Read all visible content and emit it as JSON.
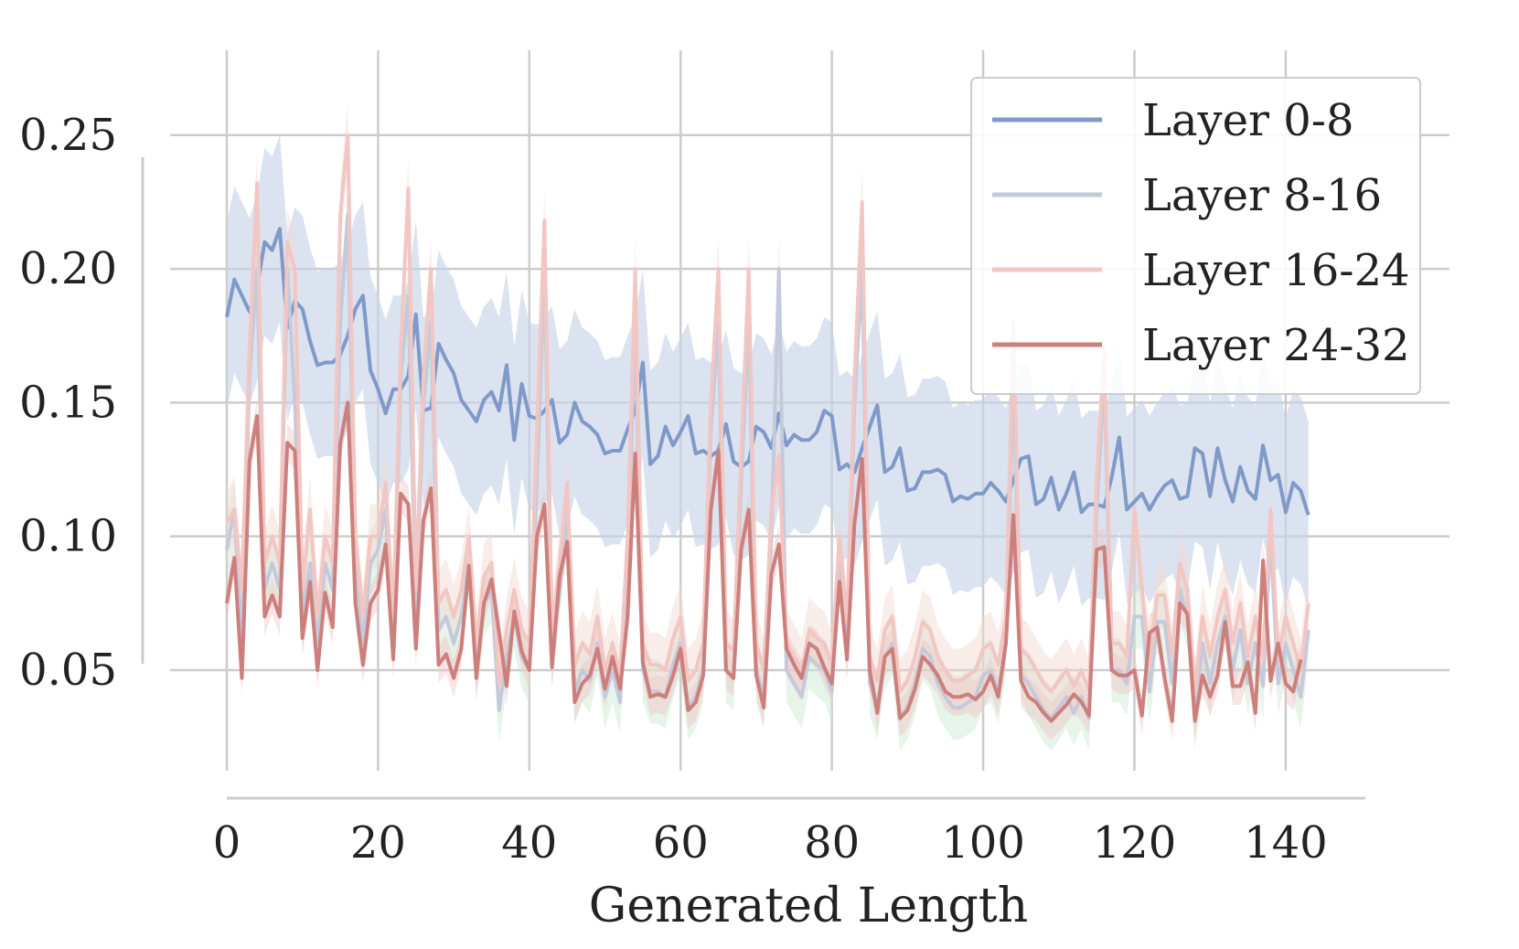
{
  "chart_data": {
    "type": "line",
    "title": "",
    "xlabel": "Generated Length",
    "ylabel": "",
    "xlim": [
      0,
      143
    ],
    "ylim": [
      0.01,
      0.28
    ],
    "xticks": [
      0,
      20,
      40,
      60,
      80,
      100,
      120,
      140
    ],
    "yticks": [
      0.05,
      0.1,
      0.15,
      0.2,
      0.25
    ],
    "xtick_labels": [
      "0",
      "20",
      "40",
      "60",
      "80",
      "100",
      "120",
      "140"
    ],
    "ytick_labels": [
      "0.05",
      "0.10",
      "0.15",
      "0.20",
      "0.25"
    ],
    "grid": true,
    "legend_position": "top-right",
    "series": [
      {
        "name": "Layer 0-8",
        "color": "#7f9ac8",
        "band_color": "#c8d4e8",
        "band_halfwidth": 0.035,
        "values": [
          0.182,
          0.196,
          0.19,
          0.184,
          0.193,
          0.21,
          0.207,
          0.215,
          0.178,
          0.188,
          0.185,
          0.173,
          0.164,
          0.165,
          0.165,
          0.168,
          0.175,
          0.185,
          0.19,
          0.162,
          0.155,
          0.146,
          0.155,
          0.155,
          0.16,
          0.183,
          0.147,
          0.148,
          0.172,
          0.166,
          0.161,
          0.151,
          0.147,
          0.143,
          0.151,
          0.154,
          0.147,
          0.164,
          0.136,
          0.157,
          0.145,
          0.144,
          0.147,
          0.151,
          0.135,
          0.138,
          0.15,
          0.143,
          0.141,
          0.138,
          0.131,
          0.132,
          0.132,
          0.14,
          0.147,
          0.165,
          0.127,
          0.13,
          0.141,
          0.134,
          0.139,
          0.145,
          0.131,
          0.132,
          0.13,
          0.132,
          0.142,
          0.128,
          0.126,
          0.128,
          0.141,
          0.139,
          0.133,
          0.146,
          0.134,
          0.138,
          0.136,
          0.136,
          0.139,
          0.147,
          0.145,
          0.125,
          0.127,
          0.124,
          0.133,
          0.141,
          0.149,
          0.124,
          0.126,
          0.133,
          0.117,
          0.118,
          0.124,
          0.124,
          0.125,
          0.123,
          0.113,
          0.115,
          0.114,
          0.116,
          0.116,
          0.12,
          0.117,
          0.113,
          0.121,
          0.129,
          0.13,
          0.112,
          0.114,
          0.122,
          0.11,
          0.116,
          0.124,
          0.109,
          0.112,
          0.112,
          0.111,
          0.122,
          0.137,
          0.11,
          0.113,
          0.116,
          0.11,
          0.115,
          0.119,
          0.121,
          0.114,
          0.115,
          0.133,
          0.131,
          0.115,
          0.133,
          0.121,
          0.113,
          0.126,
          0.117,
          0.114,
          0.134,
          0.121,
          0.123,
          0.109,
          0.12,
          0.117,
          0.108
        ]
      },
      {
        "name": "Layer 8-16",
        "color": "#c4cadb",
        "band_color": "#c8e6d0",
        "band_halfwidth": 0.012,
        "values": [
          0.095,
          0.11,
          0.06,
          0.16,
          0.2,
          0.08,
          0.09,
          0.08,
          0.2,
          0.15,
          0.07,
          0.09,
          0.06,
          0.09,
          0.08,
          0.18,
          0.22,
          0.09,
          0.06,
          0.09,
          0.095,
          0.11,
          0.06,
          0.16,
          0.19,
          0.07,
          0.15,
          0.18,
          0.065,
          0.07,
          0.06,
          0.07,
          0.09,
          0.05,
          0.075,
          0.08,
          0.035,
          0.055,
          0.07,
          0.055,
          0.05,
          0.12,
          0.2,
          0.055,
          0.08,
          0.11,
          0.042,
          0.05,
          0.046,
          0.06,
          0.04,
          0.05,
          0.038,
          0.09,
          0.18,
          0.05,
          0.042,
          0.042,
          0.04,
          0.052,
          0.06,
          0.036,
          0.04,
          0.05,
          0.14,
          0.18,
          0.05,
          0.047,
          0.12,
          0.18,
          0.05,
          0.04,
          0.1,
          0.2,
          0.05,
          0.045,
          0.04,
          0.055,
          0.052,
          0.05,
          0.042,
          0.09,
          0.058,
          0.15,
          0.2,
          0.045,
          0.036,
          0.055,
          0.06,
          0.032,
          0.036,
          0.045,
          0.058,
          0.055,
          0.045,
          0.04,
          0.036,
          0.036,
          0.038,
          0.04,
          0.048,
          0.05,
          0.042,
          0.06,
          0.16,
          0.048,
          0.045,
          0.04,
          0.035,
          0.032,
          0.036,
          0.04,
          0.034,
          0.04,
          0.032,
          0.11,
          0.16,
          0.05,
          0.05,
          0.045,
          0.07,
          0.07,
          0.042,
          0.068,
          0.068,
          0.045,
          0.08,
          0.07,
          0.032,
          0.06,
          0.045,
          0.06,
          0.07,
          0.05,
          0.065,
          0.045,
          0.06,
          0.044,
          0.1,
          0.045,
          0.06,
          0.05,
          0.04,
          0.065
        ]
      },
      {
        "name": "Layer 16-24",
        "color": "#f2c6c2",
        "band_color": "#f2d8d0",
        "band_halfwidth": 0.012,
        "values": [
          0.105,
          0.11,
          0.08,
          0.17,
          0.232,
          0.09,
          0.1,
          0.09,
          0.21,
          0.2,
          0.08,
          0.11,
          0.07,
          0.1,
          0.09,
          0.22,
          0.25,
          0.1,
          0.07,
          0.1,
          0.1,
          0.12,
          0.07,
          0.17,
          0.23,
          0.08,
          0.16,
          0.2,
          0.075,
          0.08,
          0.07,
          0.08,
          0.1,
          0.06,
          0.085,
          0.09,
          0.045,
          0.065,
          0.08,
          0.065,
          0.06,
          0.14,
          0.218,
          0.065,
          0.09,
          0.12,
          0.052,
          0.06,
          0.056,
          0.07,
          0.05,
          0.06,
          0.048,
          0.1,
          0.2,
          0.06,
          0.052,
          0.052,
          0.05,
          0.062,
          0.07,
          0.046,
          0.05,
          0.06,
          0.15,
          0.2,
          0.06,
          0.057,
          0.13,
          0.2,
          0.06,
          0.05,
          0.11,
          0.13,
          0.06,
          0.055,
          0.05,
          0.065,
          0.062,
          0.06,
          0.052,
          0.1,
          0.068,
          0.16,
          0.225,
          0.055,
          0.046,
          0.065,
          0.07,
          0.042,
          0.046,
          0.055,
          0.068,
          0.065,
          0.055,
          0.05,
          0.046,
          0.046,
          0.048,
          0.05,
          0.058,
          0.06,
          0.052,
          0.07,
          0.18,
          0.058,
          0.055,
          0.05,
          0.045,
          0.042,
          0.046,
          0.05,
          0.044,
          0.05,
          0.042,
          0.12,
          0.17,
          0.06,
          0.06,
          0.055,
          0.11,
          0.08,
          0.052,
          0.078,
          0.078,
          0.055,
          0.09,
          0.08,
          0.042,
          0.07,
          0.055,
          0.07,
          0.08,
          0.06,
          0.075,
          0.055,
          0.07,
          0.054,
          0.11,
          0.055,
          0.07,
          0.06,
          0.05,
          0.075
        ]
      },
      {
        "name": "Layer 24-32",
        "color": "#cd7f7c",
        "band_color": "#f0c6c4",
        "band_halfwidth": 0.007,
        "values": [
          0.075,
          0.092,
          0.047,
          0.128,
          0.145,
          0.07,
          0.078,
          0.07,
          0.135,
          0.132,
          0.062,
          0.083,
          0.05,
          0.079,
          0.066,
          0.135,
          0.15,
          0.075,
          0.052,
          0.075,
          0.08,
          0.097,
          0.054,
          0.116,
          0.112,
          0.058,
          0.106,
          0.118,
          0.052,
          0.056,
          0.047,
          0.058,
          0.089,
          0.047,
          0.075,
          0.084,
          0.064,
          0.044,
          0.072,
          0.057,
          0.05,
          0.1,
          0.112,
          0.051,
          0.085,
          0.098,
          0.038,
          0.045,
          0.048,
          0.058,
          0.043,
          0.055,
          0.043,
          0.07,
          0.131,
          0.053,
          0.04,
          0.041,
          0.04,
          0.048,
          0.058,
          0.035,
          0.038,
          0.048,
          0.11,
          0.132,
          0.05,
          0.047,
          0.095,
          0.11,
          0.048,
          0.036,
          0.086,
          0.097,
          0.058,
          0.052,
          0.047,
          0.06,
          0.058,
          0.051,
          0.045,
          0.083,
          0.054,
          0.105,
          0.129,
          0.05,
          0.034,
          0.055,
          0.058,
          0.032,
          0.035,
          0.043,
          0.055,
          0.052,
          0.048,
          0.042,
          0.04,
          0.04,
          0.041,
          0.039,
          0.042,
          0.048,
          0.04,
          0.06,
          0.108,
          0.046,
          0.04,
          0.038,
          0.034,
          0.031,
          0.034,
          0.037,
          0.041,
          0.038,
          0.033,
          0.095,
          0.096,
          0.05,
          0.048,
          0.048,
          0.05,
          0.033,
          0.064,
          0.066,
          0.047,
          0.031,
          0.075,
          0.071,
          0.031,
          0.048,
          0.04,
          0.048,
          0.068,
          0.044,
          0.044,
          0.053,
          0.034,
          0.091,
          0.046,
          0.06,
          0.045,
          0.042,
          0.054
        ]
      }
    ]
  }
}
